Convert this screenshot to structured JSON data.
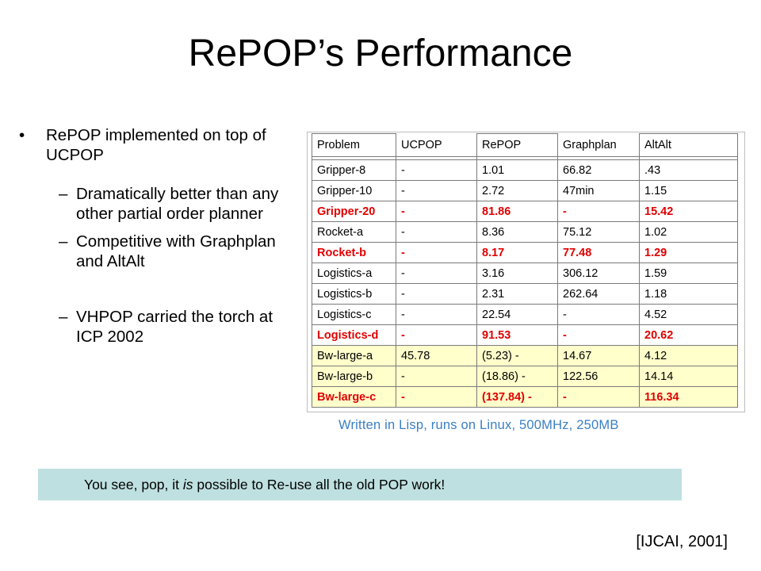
{
  "slide": {
    "title": "RePOP’s Performance",
    "bullets": [
      {
        "text": "RePOP implemented on top of UCPOP",
        "marker": "•"
      },
      {
        "text": "Dramatically better than any other partial order planner",
        "marker": "–"
      },
      {
        "text": "Competitive with Graphplan and AltAlt",
        "marker": "–"
      },
      {
        "text": "VHPOP carried the torch at ICP 2002",
        "marker": "–"
      }
    ],
    "table": {
      "columns": [
        "Problem",
        "UCPOP",
        "RePOP",
        "Graphplan",
        "AltAlt"
      ],
      "rows": [
        [
          "Gripper-8",
          "-",
          "1.01",
          "66.82",
          ".43"
        ],
        [
          "Gripper-10",
          "-",
          "2.72",
          "47min",
          "1.15"
        ],
        [
          "Gripper-20",
          "-",
          "81.86",
          "-",
          "15.42"
        ],
        [
          "Rocket-a",
          "-",
          "8.36",
          "75.12",
          "1.02"
        ],
        [
          "Rocket-b",
          "-",
          "8.17",
          "77.48",
          "1.29"
        ],
        [
          "Logistics-a",
          "-",
          "3.16",
          "306.12",
          "1.59"
        ],
        [
          "Logistics-b",
          "-",
          "2.31",
          "262.64",
          "1.18"
        ],
        [
          "Logistics-c",
          "-",
          "22.54",
          "-",
          "4.52"
        ],
        [
          "Logistics-d",
          "-",
          "91.53",
          "-",
          "20.62"
        ],
        [
          "Bw-large-a",
          "45.78",
          "(5.23) -",
          "14.67",
          "4.12"
        ],
        [
          "Bw-large-b",
          "-",
          "(18.86) -",
          "122.56",
          "14.14"
        ],
        [
          "Bw-large-c",
          "-",
          "(137.84) -",
          "-",
          "116.34"
        ]
      ],
      "highlight_color": "#e00000",
      "yellow_color": "#ffffcc"
    },
    "caption": "Written in Lisp, runs on Linux, 500MHz, 250MB",
    "note": {
      "before": "You see, pop,  it ",
      "italic": "is",
      "after": " possible to Re-use all the old POP work!"
    },
    "reference": "[IJCAI, 2001]"
  }
}
